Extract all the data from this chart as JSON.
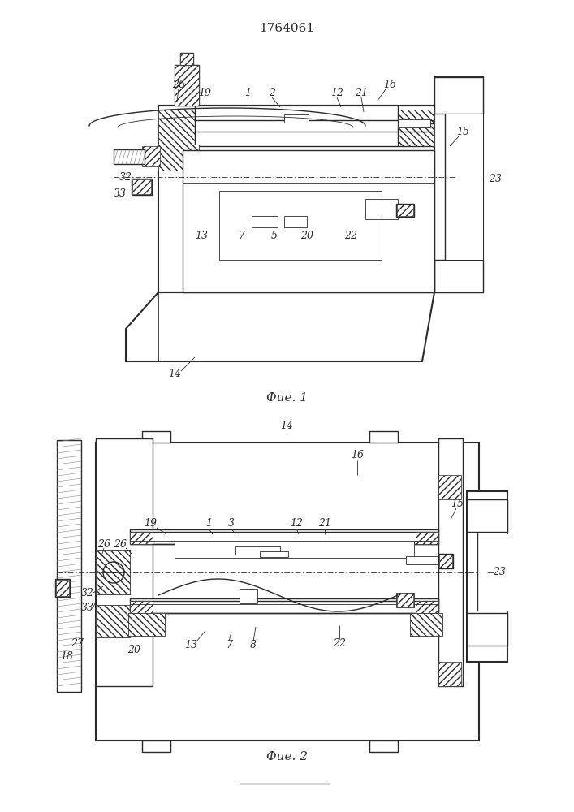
{
  "title": "1764061",
  "fig1_caption": "Фие. 1",
  "fig2_caption": "Фие. 2",
  "bg_color": "#ffffff",
  "line_color": "#2a2a2a",
  "fig_width": 7.07,
  "fig_height": 10.0,
  "dpi": 100
}
